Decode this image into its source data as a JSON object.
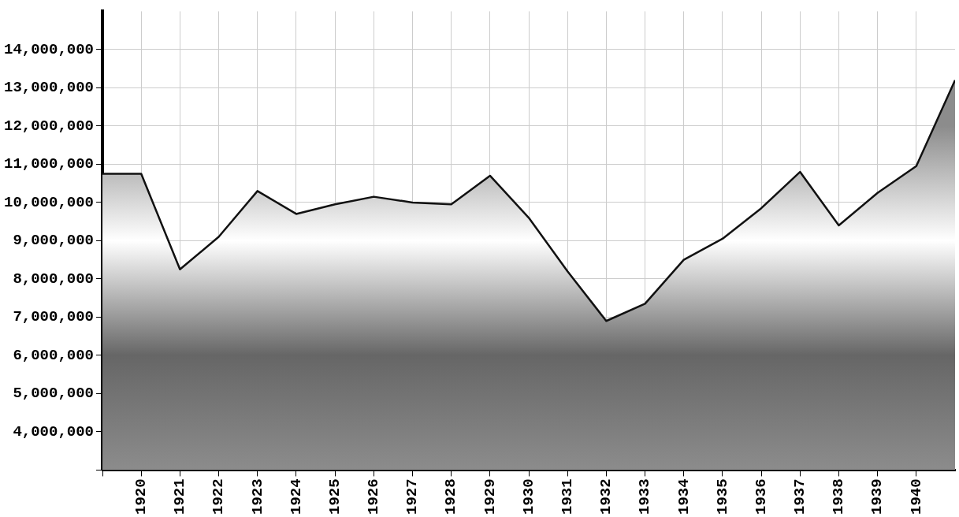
{
  "chart_data": {
    "type": "area",
    "x": [
      1919,
      1920,
      1921,
      1922,
      1923,
      1924,
      1925,
      1926,
      1927,
      1928,
      1929,
      1930,
      1931,
      1932,
      1933,
      1934,
      1935,
      1936,
      1937,
      1938,
      1939,
      1940,
      1941
    ],
    "series": [
      {
        "color": "#8c8c8c",
        "values": [
          10750000,
          10750000,
          8250000,
          9100000,
          10300000,
          9700000,
          9950000,
          10150000,
          10000000,
          9950000,
          10700000,
          9600000,
          8200000,
          6900000,
          7350000,
          8500000,
          9050000,
          9850000,
          10800000,
          9400000,
          10250000,
          10950000,
          13200000
        ]
      }
    ],
    "xlim": [
      1919,
      1941
    ],
    "xticks": [
      {
        "value": 1919,
        "label": null
      },
      1920,
      1921,
      1922,
      1923,
      1924,
      1925,
      1926,
      1927,
      1928,
      1929,
      1930,
      1931,
      1932,
      1933,
      1934,
      1935,
      1936,
      1937,
      1938,
      1939,
      1940
    ],
    "ylim": [
      3000000,
      15000000
    ],
    "yticks": [
      {
        "value": 3000000,
        "label": null
      },
      {
        "value": 4000000,
        "label": "4,000,000"
      },
      {
        "value": 5000000,
        "label": "5,000,000"
      },
      {
        "value": 6000000,
        "label": "6,000,000"
      },
      {
        "value": 7000000,
        "label": "7,000,000"
      },
      {
        "value": 8000000,
        "label": "8,000,000"
      },
      {
        "value": 9000000,
        "label": "9,000,000"
      },
      {
        "value": 10000000,
        "label": "10,000,000"
      },
      {
        "value": 11000000,
        "label": "11,000,000"
      },
      {
        "value": 12000000,
        "label": "12,000,000"
      },
      {
        "value": 13000000,
        "label": "13,000,000"
      },
      {
        "value": 14000000,
        "label": "14,000,000"
      }
    ],
    "grid": true,
    "legend": false,
    "marker": "none",
    "line_style": "solid"
  }
}
